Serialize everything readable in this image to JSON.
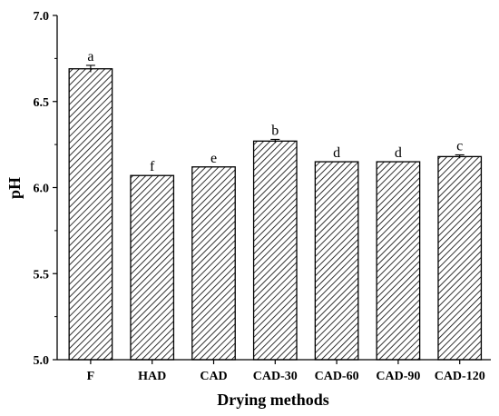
{
  "chart_data": {
    "type": "bar",
    "title": "",
    "xlabel": "Drying methods",
    "ylabel": "pH",
    "ylim": [
      5.0,
      7.0
    ],
    "y_ticks": [
      "5.0",
      "5.5",
      "6.0",
      "6.5",
      "7.0"
    ],
    "y_tick_values": [
      5.0,
      5.5,
      6.0,
      6.5,
      7.0
    ],
    "categories": [
      "F",
      "HAD",
      "CAD",
      "CAD-30",
      "CAD-60",
      "CAD-90",
      "CAD-120"
    ],
    "values": [
      6.69,
      6.07,
      6.12,
      6.27,
      6.15,
      6.15,
      6.18
    ],
    "errors": [
      0.02,
      0.0,
      0.0,
      0.01,
      0.0,
      0.0,
      0.01
    ],
    "significance_letters": [
      "a",
      "f",
      "e",
      "b",
      "d",
      "d",
      "c"
    ],
    "bar_fill": "diagonal hatch",
    "bar_color": "#000000",
    "grid": false,
    "legend": "none"
  }
}
